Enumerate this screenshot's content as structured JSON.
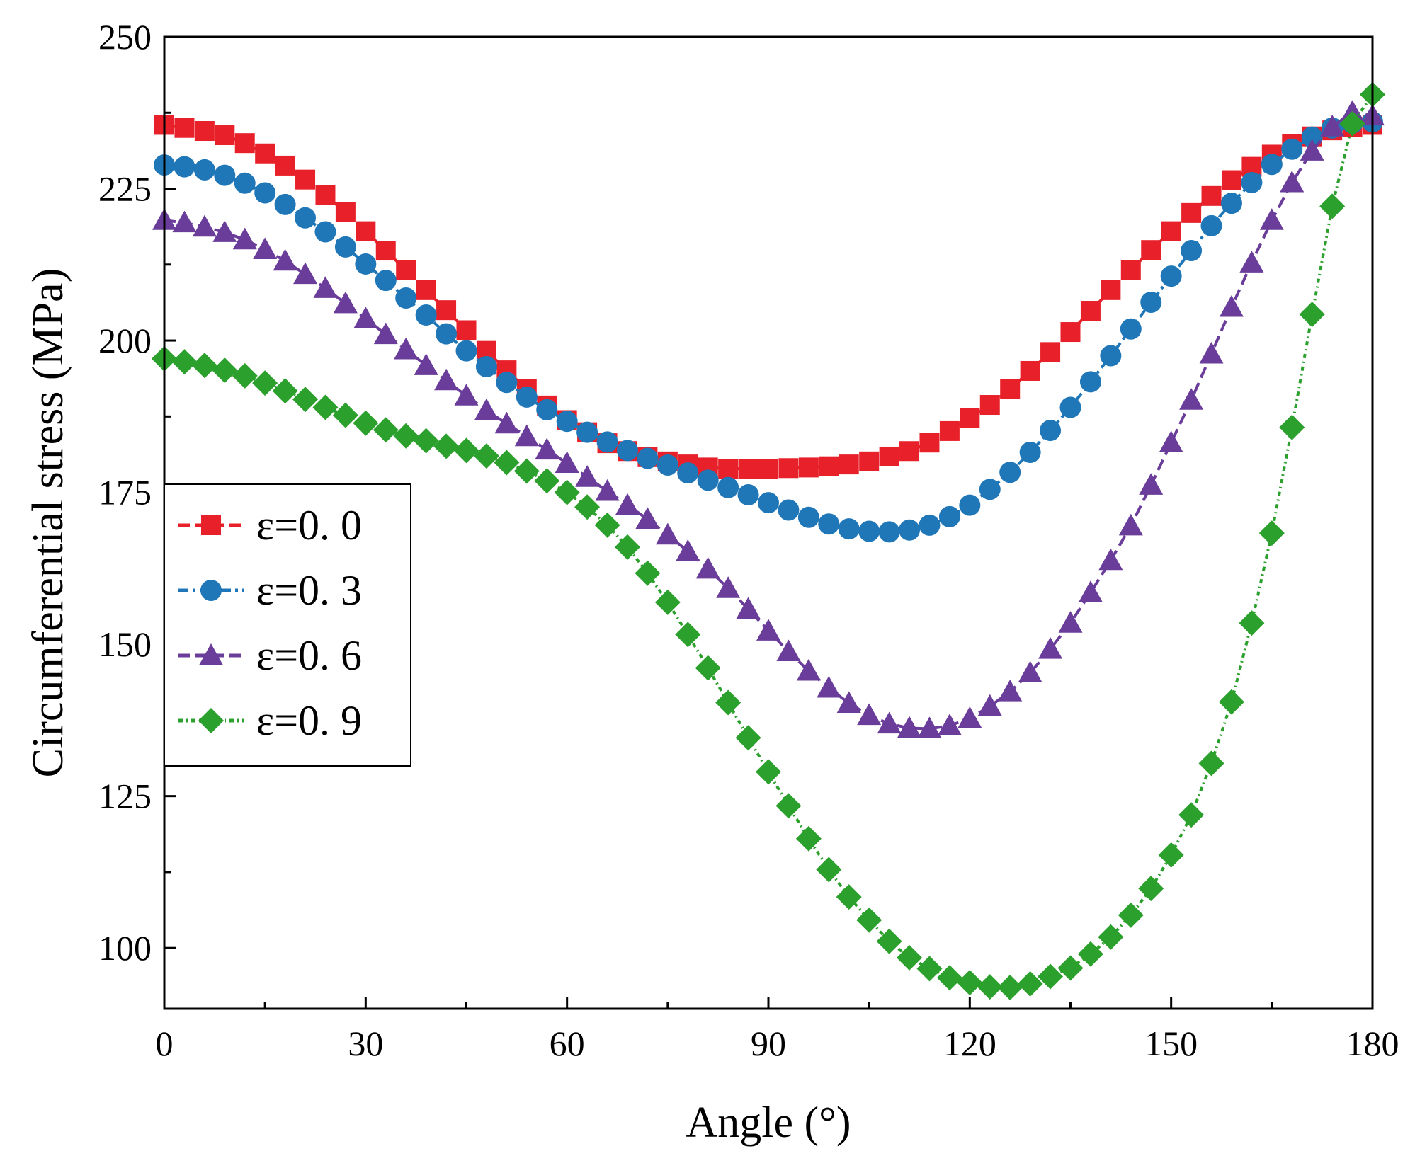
{
  "chart_data": {
    "type": "line",
    "xlabel": "Angle (°)",
    "ylabel": "Circumferential stress (MPa)",
    "xlim": [
      0,
      180
    ],
    "ylim": [
      90,
      250
    ],
    "xticks": [
      "0",
      "30",
      "60",
      "90",
      "120",
      "150",
      "180"
    ],
    "yticks": [
      "100",
      "125",
      "150",
      "175",
      "200",
      "225",
      "250"
    ],
    "grid": false,
    "legend_position": "middle-left",
    "series": [
      {
        "name": "ε=0. 0",
        "color": "#e8202a",
        "marker": "square",
        "x": [
          0,
          3,
          6,
          9,
          12,
          15,
          18,
          21,
          24,
          27,
          30,
          33,
          36,
          39,
          42,
          45,
          48,
          51,
          54,
          57,
          60,
          63,
          66,
          69,
          72,
          75,
          78,
          81,
          84,
          87,
          90,
          93,
          96,
          99,
          102,
          105,
          108,
          111,
          114,
          117,
          120,
          123,
          126,
          129,
          132,
          135,
          138,
          141,
          144,
          147,
          150,
          153,
          156,
          159,
          162,
          165,
          168,
          171,
          174,
          177,
          180
        ],
        "values": [
          235.5,
          235.0,
          234.5,
          233.8,
          232.5,
          230.8,
          228.8,
          226.5,
          223.9,
          221.1,
          218.0,
          214.8,
          211.6,
          208.3,
          205.0,
          201.7,
          198.3,
          195.1,
          192.0,
          189.3,
          186.9,
          184.9,
          183.1,
          181.8,
          180.8,
          180.1,
          179.6,
          179.1,
          178.9,
          178.9,
          178.9,
          179.0,
          179.1,
          179.3,
          179.6,
          180.1,
          180.9,
          181.8,
          183.2,
          185.1,
          187.2,
          189.4,
          192.0,
          195.0,
          198.1,
          201.4,
          204.9,
          208.3,
          211.6,
          214.9,
          218.0,
          221.0,
          223.8,
          226.4,
          228.6,
          230.6,
          232.3,
          233.6,
          234.6,
          235.2,
          235.5
        ]
      },
      {
        "name": "ε=0. 3",
        "color": "#1f77b8",
        "marker": "circle",
        "x": [
          0,
          3,
          6,
          9,
          12,
          15,
          18,
          21,
          24,
          27,
          30,
          33,
          36,
          39,
          42,
          45,
          48,
          51,
          54,
          57,
          60,
          63,
          66,
          69,
          72,
          75,
          78,
          81,
          84,
          87,
          90,
          93,
          96,
          99,
          102,
          105,
          108,
          111,
          114,
          117,
          120,
          123,
          126,
          129,
          132,
          135,
          138,
          141,
          144,
          147,
          150,
          153,
          156,
          159,
          162,
          165,
          168,
          171,
          174,
          177,
          180
        ],
        "values": [
          228.9,
          228.6,
          228.1,
          227.2,
          225.9,
          224.3,
          222.4,
          220.2,
          217.9,
          215.4,
          212.6,
          209.9,
          207.0,
          204.2,
          201.1,
          198.3,
          195.7,
          193.1,
          190.7,
          188.6,
          186.7,
          184.9,
          183.3,
          181.9,
          180.6,
          179.5,
          178.2,
          177.0,
          175.8,
          174.6,
          173.3,
          172.1,
          170.9,
          169.8,
          169.0,
          168.6,
          168.5,
          168.8,
          169.6,
          171.0,
          172.9,
          175.5,
          178.3,
          181.6,
          185.2,
          189.0,
          193.2,
          197.5,
          201.9,
          206.3,
          210.6,
          214.8,
          218.9,
          222.6,
          226.0,
          229.0,
          231.5,
          233.5,
          235.0,
          235.8,
          236.0
        ]
      },
      {
        "name": "ε=0. 6",
        "color": "#6a3d9a",
        "marker": "triangle",
        "x": [
          0,
          3,
          6,
          9,
          12,
          15,
          18,
          21,
          24,
          27,
          30,
          33,
          36,
          39,
          42,
          45,
          48,
          51,
          54,
          57,
          60,
          63,
          66,
          69,
          72,
          75,
          78,
          81,
          84,
          87,
          90,
          93,
          96,
          99,
          102,
          105,
          108,
          111,
          114,
          117,
          120,
          123,
          126,
          129,
          132,
          135,
          138,
          141,
          144,
          147,
          150,
          153,
          156,
          159,
          162,
          165,
          168,
          171,
          174,
          177,
          180
        ],
        "values": [
          219.8,
          219.4,
          218.7,
          217.8,
          216.6,
          215.0,
          213.1,
          210.9,
          208.6,
          206.1,
          203.6,
          201.0,
          198.5,
          195.9,
          193.4,
          190.9,
          188.5,
          186.3,
          184.2,
          182.0,
          179.8,
          177.5,
          175.2,
          172.9,
          170.6,
          168.0,
          165.3,
          162.4,
          159.2,
          155.8,
          152.2,
          148.8,
          145.6,
          142.8,
          140.3,
          138.3,
          136.9,
          136.2,
          136.1,
          136.6,
          137.8,
          139.8,
          142.2,
          145.3,
          149.2,
          153.5,
          158.5,
          163.8,
          169.5,
          176.2,
          183.2,
          190.2,
          197.8,
          205.5,
          212.8,
          219.8,
          226.0,
          231.2,
          235.2,
          237.6,
          237.0
        ]
      },
      {
        "name": "ε=0. 9",
        "color": "#2ca02c",
        "marker": "diamond",
        "x": [
          0,
          3,
          6,
          9,
          12,
          15,
          18,
          21,
          24,
          27,
          30,
          33,
          36,
          39,
          42,
          45,
          48,
          51,
          54,
          57,
          60,
          63,
          66,
          69,
          72,
          75,
          78,
          81,
          84,
          87,
          90,
          93,
          96,
          99,
          102,
          105,
          108,
          111,
          114,
          117,
          120,
          123,
          126,
          129,
          132,
          135,
          138,
          141,
          144,
          147,
          150,
          153,
          156,
          159,
          162,
          165,
          168,
          171,
          174,
          177,
          180
        ],
        "values": [
          197.0,
          196.5,
          195.9,
          195.1,
          194.2,
          193.0,
          191.7,
          190.3,
          189.0,
          187.7,
          186.4,
          185.3,
          184.3,
          183.5,
          182.6,
          181.9,
          181.0,
          179.9,
          178.5,
          176.9,
          175.0,
          172.6,
          169.6,
          166.0,
          161.7,
          156.9,
          151.6,
          146.1,
          140.4,
          134.6,
          129.0,
          123.4,
          118.0,
          112.9,
          108.4,
          104.6,
          101.1,
          98.4,
          96.6,
          95.1,
          94.3,
          93.6,
          93.5,
          94.1,
          95.3,
          96.7,
          99.0,
          101.8,
          105.4,
          109.8,
          115.3,
          121.9,
          130.4,
          140.5,
          153.5,
          168.3,
          185.7,
          204.3,
          222.1,
          235.7,
          240.5
        ]
      }
    ]
  }
}
